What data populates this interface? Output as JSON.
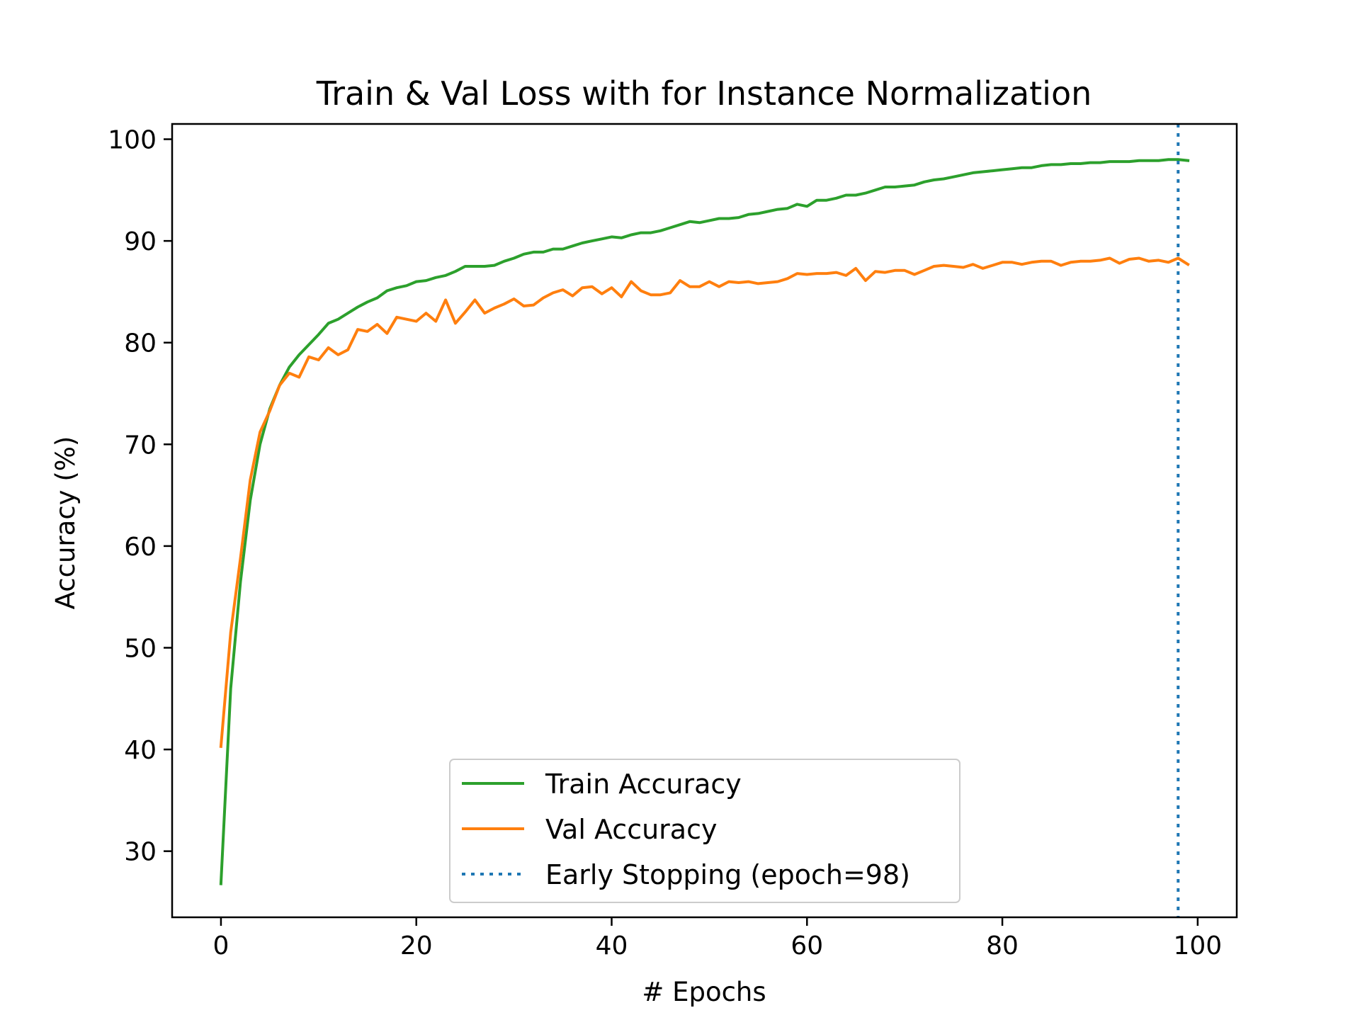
{
  "chart_data": {
    "type": "line",
    "title": "Train & Val Loss with for Instance Normalization",
    "xlabel": "# Epochs",
    "ylabel": "Accuracy (%)",
    "xlim": [
      -5,
      104
    ],
    "ylim": [
      23.5,
      101.5
    ],
    "xticks": [
      0,
      20,
      40,
      60,
      80,
      100
    ],
    "yticks": [
      30,
      40,
      50,
      60,
      70,
      80,
      90,
      100
    ],
    "grid": false,
    "legend_position": "lower-center",
    "series": [
      {
        "name": "Train Accuracy",
        "color": "#2ca02c",
        "style": "solid",
        "x": [
          0,
          1,
          2,
          3,
          4,
          5,
          6,
          7,
          8,
          9,
          10,
          11,
          12,
          13,
          14,
          15,
          16,
          17,
          18,
          19,
          20,
          21,
          22,
          23,
          24,
          25,
          26,
          27,
          28,
          29,
          30,
          31,
          32,
          33,
          34,
          35,
          36,
          37,
          38,
          39,
          40,
          41,
          42,
          43,
          44,
          45,
          46,
          47,
          48,
          49,
          50,
          51,
          52,
          53,
          54,
          55,
          56,
          57,
          58,
          59,
          60,
          61,
          62,
          63,
          64,
          65,
          66,
          67,
          68,
          69,
          70,
          71,
          72,
          73,
          74,
          75,
          76,
          77,
          78,
          79,
          80,
          81,
          82,
          83,
          84,
          85,
          86,
          87,
          88,
          89,
          90,
          91,
          92,
          93,
          94,
          95,
          96,
          97,
          98,
          99
        ],
        "values": [
          26.8,
          46.0,
          56.5,
          64.5,
          70.0,
          73.5,
          75.8,
          77.6,
          78.8,
          79.8,
          80.8,
          81.9,
          82.3,
          82.9,
          83.5,
          84.0,
          84.4,
          85.1,
          85.4,
          85.6,
          86.0,
          86.1,
          86.4,
          86.6,
          87.0,
          87.5,
          87.5,
          87.5,
          87.6,
          88.0,
          88.3,
          88.7,
          88.9,
          88.9,
          89.2,
          89.2,
          89.5,
          89.8,
          90.0,
          90.2,
          90.4,
          90.3,
          90.6,
          90.8,
          90.8,
          91.0,
          91.3,
          91.6,
          91.9,
          91.8,
          92.0,
          92.2,
          92.2,
          92.3,
          92.6,
          92.7,
          92.9,
          93.1,
          93.2,
          93.6,
          93.4,
          94.0,
          94.0,
          94.2,
          94.5,
          94.5,
          94.7,
          95.0,
          95.3,
          95.3,
          95.4,
          95.5,
          95.8,
          96.0,
          96.1,
          96.3,
          96.5,
          96.7,
          96.8,
          96.9,
          97.0,
          97.1,
          97.2,
          97.2,
          97.4,
          97.5,
          97.5,
          97.6,
          97.6,
          97.7,
          97.7,
          97.8,
          97.8,
          97.8,
          97.9,
          97.9,
          97.9,
          98.0,
          98.0,
          97.9
        ]
      },
      {
        "name": "Val Accuracy",
        "color": "#ff7f0e",
        "style": "solid",
        "x": [
          0,
          1,
          2,
          3,
          4,
          5,
          6,
          7,
          8,
          9,
          10,
          11,
          12,
          13,
          14,
          15,
          16,
          17,
          18,
          19,
          20,
          21,
          22,
          23,
          24,
          25,
          26,
          27,
          28,
          29,
          30,
          31,
          32,
          33,
          34,
          35,
          36,
          37,
          38,
          39,
          40,
          41,
          42,
          43,
          44,
          45,
          46,
          47,
          48,
          49,
          50,
          51,
          52,
          53,
          54,
          55,
          56,
          57,
          58,
          59,
          60,
          61,
          62,
          63,
          64,
          65,
          66,
          67,
          68,
          69,
          70,
          71,
          72,
          73,
          74,
          75,
          76,
          77,
          78,
          79,
          80,
          81,
          82,
          83,
          84,
          85,
          86,
          87,
          88,
          89,
          90,
          91,
          92,
          93,
          94,
          95,
          96,
          97,
          98,
          99
        ],
        "values": [
          40.3,
          51.5,
          58.8,
          66.5,
          71.2,
          73.3,
          75.8,
          77.0,
          76.6,
          78.6,
          78.3,
          79.5,
          78.8,
          79.3,
          81.3,
          81.1,
          81.8,
          80.9,
          82.5,
          82.3,
          82.1,
          82.9,
          82.1,
          84.2,
          81.9,
          83.0,
          84.2,
          82.9,
          83.4,
          83.8,
          84.3,
          83.6,
          83.7,
          84.4,
          84.9,
          85.2,
          84.6,
          85.4,
          85.5,
          84.8,
          85.4,
          84.5,
          86.0,
          85.1,
          84.7,
          84.7,
          84.9,
          86.1,
          85.5,
          85.5,
          86.0,
          85.5,
          86.0,
          85.9,
          86.0,
          85.8,
          85.9,
          86.0,
          86.3,
          86.8,
          86.7,
          86.8,
          86.8,
          86.9,
          86.6,
          87.3,
          86.1,
          87.0,
          86.9,
          87.1,
          87.1,
          86.7,
          87.1,
          87.5,
          87.6,
          87.5,
          87.4,
          87.7,
          87.3,
          87.6,
          87.9,
          87.9,
          87.7,
          87.9,
          88.0,
          88.0,
          87.6,
          87.9,
          88.0,
          88.0,
          88.1,
          88.3,
          87.8,
          88.2,
          88.3,
          88.0,
          88.1,
          87.9,
          88.3,
          87.7
        ]
      }
    ],
    "vlines": [
      {
        "name": "Early Stopping (epoch=98)",
        "x": 98,
        "color": "#1f77b4",
        "style": "dotted"
      }
    ]
  }
}
